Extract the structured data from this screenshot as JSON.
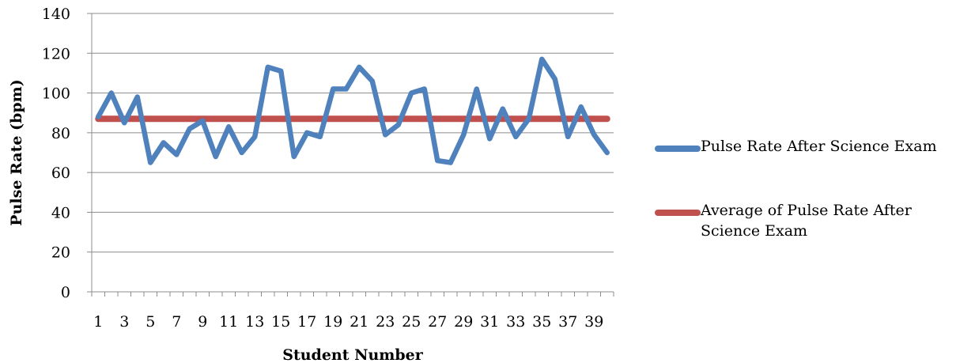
{
  "chart_data": {
    "type": "line",
    "xlabel": "Student Number",
    "ylabel": "Pulse Rate (bpm)",
    "ylim": [
      0,
      140
    ],
    "y_ticks": [
      "0",
      "20",
      "40",
      "60",
      "80",
      "100",
      "120",
      "140"
    ],
    "x_tick_labels": [
      "1",
      "3",
      "5",
      "7",
      "9",
      "11",
      "13",
      "15",
      "17",
      "19",
      "21",
      "23",
      "25",
      "27",
      "29",
      "31",
      "33",
      "35",
      "37",
      "39"
    ],
    "x": [
      1,
      2,
      3,
      4,
      5,
      6,
      7,
      8,
      9,
      10,
      11,
      12,
      13,
      14,
      15,
      16,
      17,
      18,
      19,
      20,
      21,
      22,
      23,
      24,
      25,
      26,
      27,
      28,
      29,
      30,
      31,
      32,
      33,
      34,
      35,
      36,
      37,
      38,
      39,
      40
    ],
    "grid": "horizontal",
    "legend_position": "right",
    "series": [
      {
        "name": "Pulse Rate After Science Exam",
        "color": "#4F81BD",
        "values": [
          88,
          100,
          85,
          98,
          65,
          75,
          69,
          82,
          86,
          68,
          83,
          70,
          78,
          113,
          111,
          68,
          80,
          78,
          102,
          102,
          113,
          106,
          79,
          84,
          100,
          102,
          66,
          65,
          79,
          102,
          77,
          92,
          78,
          87,
          117,
          107,
          78,
          93,
          79,
          70
        ]
      },
      {
        "name": "Average of Pulse Rate After Science Exam",
        "color": "#C0504D",
        "values": [
          87,
          87,
          87,
          87,
          87,
          87,
          87,
          87,
          87,
          87,
          87,
          87,
          87,
          87,
          87,
          87,
          87,
          87,
          87,
          87,
          87,
          87,
          87,
          87,
          87,
          87,
          87,
          87,
          87,
          87,
          87,
          87,
          87,
          87,
          87,
          87,
          87,
          87,
          87,
          87
        ]
      }
    ]
  }
}
